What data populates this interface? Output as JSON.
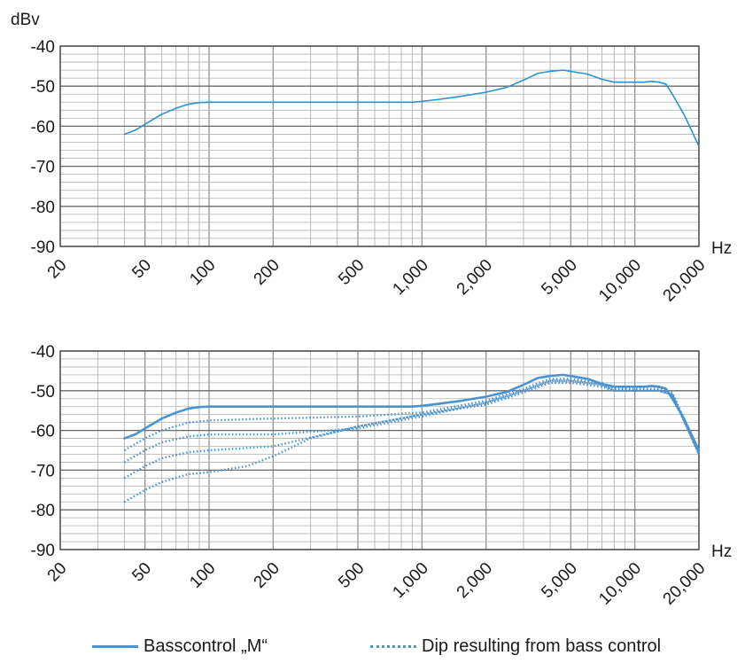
{
  "chart_data": [
    {
      "type": "line",
      "title": "",
      "ylabel": "dBv",
      "xlabel": "Hz",
      "x_scale": "log",
      "xlim": [
        20,
        20000
      ],
      "ylim": [
        -90,
        -40
      ],
      "grid": true,
      "y_ticks": [
        -40,
        -50,
        -60,
        -70,
        -80,
        -90
      ],
      "y_tick_labels": [
        "-40",
        "-50",
        "-60",
        "-70",
        "-80",
        "-90"
      ],
      "x_ticks": [
        20,
        50,
        100,
        200,
        500,
        1000,
        2000,
        5000,
        10000,
        20000
      ],
      "x_tick_labels": [
        "20",
        "50",
        "100",
        "200",
        "500",
        "1,000",
        "2,000",
        "5,000",
        "10,000",
        "20,000"
      ],
      "series": [
        {
          "style": "solid",
          "x": [
            40,
            45,
            50,
            60,
            70,
            80,
            90,
            100,
            200,
            500,
            900,
            1000,
            1200,
            1500,
            2000,
            2500,
            3000,
            3500,
            4000,
            4600,
            5000,
            6000,
            7000,
            8000,
            9000,
            10000,
            11000,
            12000,
            13000,
            14000,
            15000,
            17000,
            20000
          ],
          "y": [
            -62,
            -61,
            -59.5,
            -57,
            -55.5,
            -54.5,
            -54.1,
            -54,
            -54,
            -54,
            -54,
            -53.8,
            -53.3,
            -52.6,
            -51.5,
            -50.3,
            -48.5,
            -46.8,
            -46.3,
            -46,
            -46.3,
            -47,
            -48.3,
            -49,
            -49,
            -49,
            -49,
            -48.8,
            -49,
            -49.5,
            -52,
            -57,
            -65
          ]
        }
      ]
    },
    {
      "type": "line",
      "title": "",
      "ylabel": "",
      "xlabel": "Hz",
      "x_scale": "log",
      "xlim": [
        20,
        20000
      ],
      "ylim": [
        -90,
        -40
      ],
      "grid": true,
      "y_ticks": [
        -40,
        -50,
        -60,
        -70,
        -80,
        -90
      ],
      "y_tick_labels": [
        "-40",
        "-50",
        "-60",
        "-70",
        "-80",
        "-90"
      ],
      "x_ticks": [
        20,
        50,
        100,
        200,
        500,
        1000,
        2000,
        5000,
        10000,
        20000
      ],
      "x_tick_labels": [
        "20",
        "50",
        "100",
        "200",
        "500",
        "1,000",
        "2,000",
        "5,000",
        "10,000",
        "20,000"
      ],
      "series": [
        {
          "name": "Basscontrol „M“",
          "style": "solid",
          "x": [
            40,
            45,
            50,
            60,
            70,
            80,
            90,
            100,
            200,
            500,
            900,
            1000,
            1200,
            1500,
            2000,
            2500,
            3000,
            3500,
            4000,
            4600,
            5000,
            6000,
            7000,
            8000,
            9000,
            10000,
            11000,
            12000,
            13000,
            14000,
            15000,
            17000,
            20000
          ],
          "y": [
            -62,
            -61,
            -59.5,
            -57,
            -55.5,
            -54.5,
            -54.1,
            -54,
            -54,
            -54,
            -54,
            -53.8,
            -53.3,
            -52.6,
            -51.5,
            -50.3,
            -48.5,
            -46.8,
            -46.3,
            -46,
            -46.3,
            -47,
            -48.3,
            -49,
            -49,
            -49,
            -49,
            -48.8,
            -49,
            -49.5,
            -52,
            -57,
            -65
          ]
        },
        {
          "name": "Dip resulting from bass control",
          "style": "dotted",
          "x": [
            40,
            50,
            60,
            80,
            100,
            200,
            500,
            1000,
            2000,
            3000,
            4000,
            5000,
            7000,
            8000,
            10000,
            13000,
            15000,
            20000
          ],
          "y": [
            -65,
            -62,
            -60,
            -58,
            -57.5,
            -57,
            -56.5,
            -55.5,
            -52.5,
            -49.5,
            -47,
            -47,
            -48,
            -49.5,
            -49.5,
            -49.5,
            -50.5,
            -65.5
          ]
        },
        {
          "name": "Dip resulting from bass control",
          "style": "dotted",
          "x": [
            40,
            50,
            60,
            80,
            100,
            200,
            500,
            1000,
            2000,
            3000,
            4000,
            5000,
            7000,
            8000,
            10000,
            13000,
            15000,
            20000
          ],
          "y": [
            -68,
            -65,
            -63,
            -61.5,
            -61,
            -61,
            -59.5,
            -56.5,
            -53,
            -50,
            -47.5,
            -47.5,
            -48.5,
            -50,
            -50,
            -50,
            -51,
            -66
          ]
        },
        {
          "name": "Dip resulting from bass control",
          "style": "dotted",
          "x": [
            40,
            50,
            60,
            80,
            100,
            200,
            500,
            1000,
            2000,
            3000,
            4000,
            5000,
            7000,
            8000,
            10000,
            13000,
            15000,
            20000
          ],
          "y": [
            -72,
            -69,
            -67,
            -65.5,
            -65,
            -64,
            -59,
            -56,
            -53,
            -50,
            -47.5,
            -47.5,
            -48.5,
            -50,
            -50,
            -50,
            -51,
            -66
          ]
        },
        {
          "name": "Dip resulting from bass control",
          "style": "dotted",
          "x": [
            40,
            50,
            60,
            80,
            100,
            150,
            200,
            300,
            500,
            1000,
            2000,
            3000,
            4000,
            5000,
            7000,
            8000,
            10000,
            13000,
            15000,
            20000
          ],
          "y": [
            -78,
            -75,
            -73,
            -71,
            -70.5,
            -69,
            -66.5,
            -62,
            -59,
            -56,
            -53.5,
            -50.5,
            -48,
            -48,
            -49,
            -50,
            -50,
            -50,
            -51,
            -66
          ]
        }
      ]
    }
  ],
  "legend": {
    "solid_label": "Basscontrol „M“",
    "dotted_label": "Dip resulting from bass control"
  },
  "colors": {
    "line_top": "#2a93cf",
    "line_bottom": "#4a93cf",
    "grid": "#9a9a9a",
    "text": "#1a1a1a"
  }
}
